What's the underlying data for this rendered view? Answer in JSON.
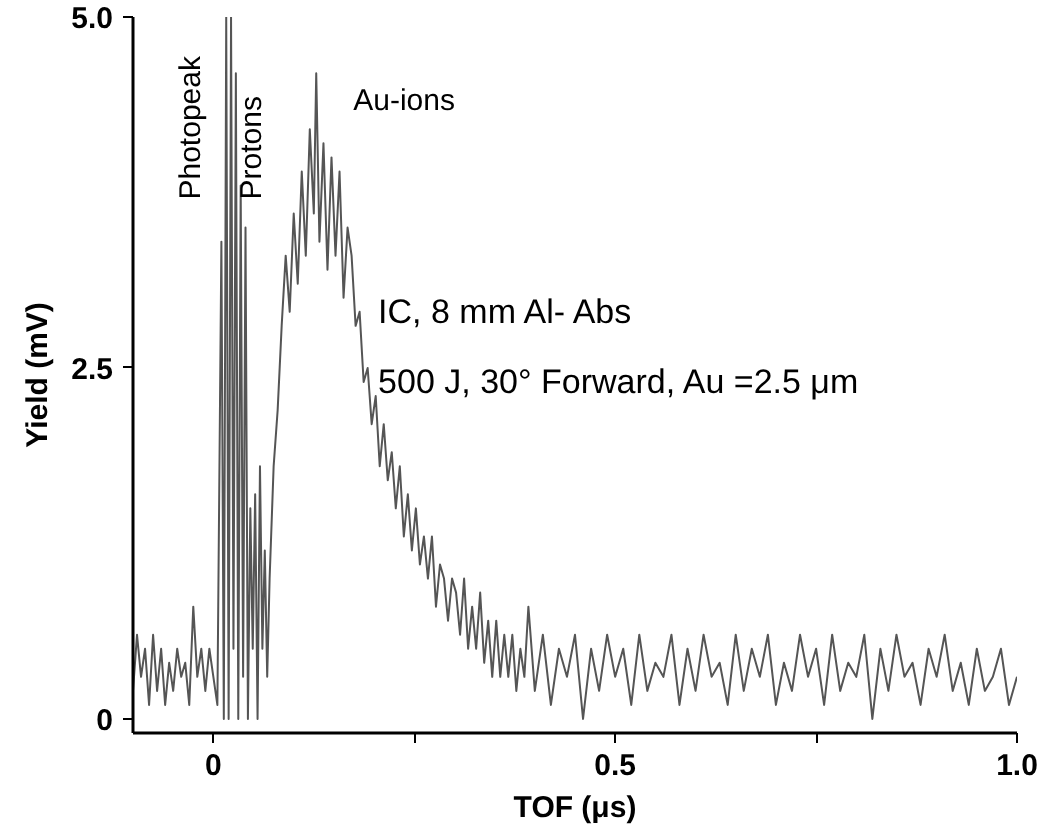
{
  "chart_data": {
    "type": "line",
    "xlabel": "TOF (μs)",
    "ylabel": "Yield (mV)",
    "xlim": [
      -0.1,
      1.0
    ],
    "ylim": [
      -0.1,
      5.0
    ],
    "xticks": [
      0,
      {
        "value": 0.25,
        "label": null
      },
      0.5,
      {
        "value": 0.75,
        "label": null
      },
      {
        "value": 1.0,
        "label": "1.0"
      }
    ],
    "yticks": [
      0,
      2.5,
      {
        "value": 5.0,
        "label": "5.0"
      }
    ],
    "annotations": [
      "Photopeak",
      "Protons",
      "Au-ions",
      "IC, 8 mm Al- Abs",
      "500 J, 30° Forward, Au =2.5 μm"
    ],
    "grid": false,
    "marker": "none",
    "line_style": "solid",
    "series": [
      {
        "color": "#555555",
        "x": [
          -0.1,
          -0.095,
          -0.09,
          -0.085,
          -0.08,
          -0.075,
          -0.07,
          -0.065,
          -0.06,
          -0.055,
          -0.05,
          -0.045,
          -0.04,
          -0.035,
          -0.03,
          -0.025,
          -0.02,
          -0.015,
          -0.01,
          -0.005,
          0.0,
          0.005,
          0.01,
          0.013,
          0.016,
          0.019,
          0.022,
          0.025,
          0.028,
          0.031,
          0.034,
          0.037,
          0.04,
          0.043,
          0.046,
          0.049,
          0.052,
          0.055,
          0.058,
          0.061,
          0.064,
          0.067,
          0.07,
          0.075,
          0.08,
          0.085,
          0.09,
          0.095,
          0.1,
          0.105,
          0.11,
          0.115,
          0.12,
          0.125,
          0.128,
          0.132,
          0.137,
          0.142,
          0.147,
          0.152,
          0.157,
          0.162,
          0.167,
          0.172,
          0.177,
          0.182,
          0.187,
          0.192,
          0.197,
          0.202,
          0.207,
          0.212,
          0.217,
          0.222,
          0.227,
          0.232,
          0.237,
          0.242,
          0.247,
          0.252,
          0.257,
          0.262,
          0.267,
          0.272,
          0.277,
          0.282,
          0.287,
          0.292,
          0.297,
          0.302,
          0.307,
          0.312,
          0.317,
          0.322,
          0.327,
          0.332,
          0.337,
          0.342,
          0.347,
          0.352,
          0.357,
          0.362,
          0.367,
          0.372,
          0.377,
          0.382,
          0.387,
          0.392,
          0.4,
          0.41,
          0.42,
          0.43,
          0.44,
          0.45,
          0.46,
          0.47,
          0.48,
          0.49,
          0.5,
          0.51,
          0.52,
          0.53,
          0.54,
          0.55,
          0.56,
          0.57,
          0.58,
          0.59,
          0.6,
          0.61,
          0.62,
          0.63,
          0.64,
          0.65,
          0.66,
          0.67,
          0.68,
          0.69,
          0.7,
          0.71,
          0.72,
          0.73,
          0.74,
          0.75,
          0.76,
          0.77,
          0.78,
          0.79,
          0.8,
          0.81,
          0.82,
          0.83,
          0.84,
          0.85,
          0.86,
          0.87,
          0.88,
          0.89,
          0.9,
          0.91,
          0.92,
          0.93,
          0.94,
          0.95,
          0.96,
          0.97,
          0.98,
          0.99,
          1.0
        ],
        "values": [
          0.2,
          0.6,
          0.3,
          0.5,
          0.1,
          0.6,
          0.2,
          0.5,
          0.1,
          0.4,
          0.2,
          0.5,
          0.3,
          0.4,
          0.1,
          0.8,
          0.3,
          0.5,
          0.2,
          0.5,
          0.3,
          0.1,
          3.4,
          0.0,
          5.0,
          0.0,
          5.0,
          0.5,
          4.6,
          0.0,
          3.8,
          0.3,
          3.5,
          0.0,
          1.5,
          0.5,
          1.6,
          0.0,
          1.8,
          0.5,
          1.2,
          0.3,
          1.0,
          1.8,
          2.2,
          2.8,
          3.3,
          2.9,
          3.6,
          3.1,
          3.9,
          3.3,
          4.2,
          3.6,
          4.6,
          3.4,
          4.1,
          3.2,
          4.0,
          3.3,
          3.9,
          3.0,
          3.5,
          3.3,
          2.8,
          2.9,
          2.4,
          2.5,
          2.1,
          2.3,
          1.8,
          2.1,
          1.7,
          1.9,
          1.5,
          1.8,
          1.3,
          1.6,
          1.2,
          1.5,
          1.1,
          1.3,
          1.0,
          1.3,
          0.8,
          1.1,
          1.0,
          0.7,
          1.0,
          0.9,
          0.6,
          1.0,
          0.5,
          0.8,
          0.5,
          0.9,
          0.4,
          0.7,
          0.3,
          0.7,
          0.3,
          0.6,
          0.3,
          0.6,
          0.2,
          0.5,
          0.3,
          0.8,
          0.2,
          0.6,
          0.1,
          0.5,
          0.3,
          0.6,
          0.0,
          0.5,
          0.2,
          0.6,
          0.3,
          0.5,
          0.1,
          0.6,
          0.2,
          0.4,
          0.3,
          0.6,
          0.1,
          0.5,
          0.2,
          0.6,
          0.3,
          0.4,
          0.1,
          0.6,
          0.2,
          0.5,
          0.3,
          0.6,
          0.1,
          0.4,
          0.2,
          0.6,
          0.3,
          0.5,
          0.1,
          0.6,
          0.2,
          0.4,
          0.3,
          0.6,
          0.0,
          0.5,
          0.2,
          0.6,
          0.3,
          0.4,
          0.1,
          0.5,
          0.3,
          0.6,
          0.2,
          0.4,
          0.1,
          0.5,
          0.2,
          0.3,
          0.5,
          0.1,
          0.3
        ]
      }
    ]
  }
}
